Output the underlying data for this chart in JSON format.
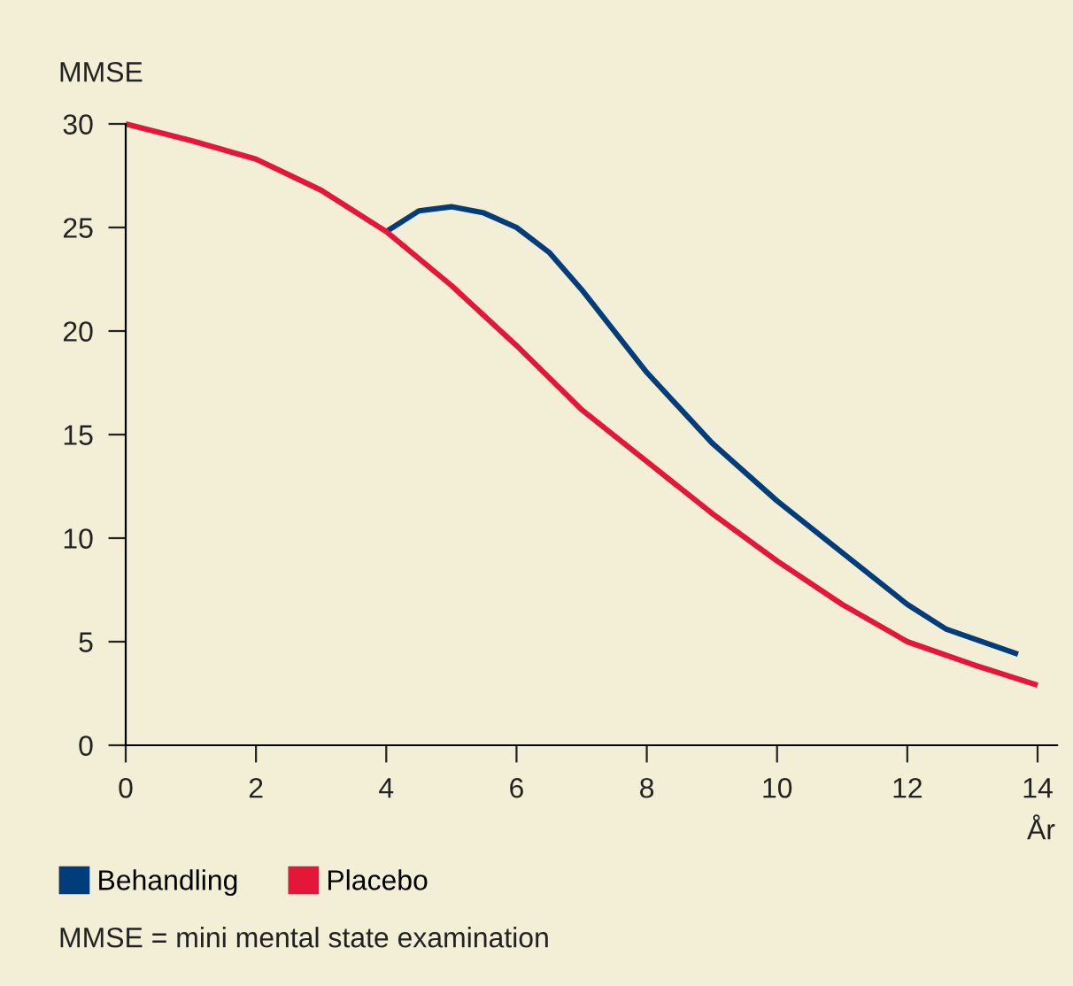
{
  "chart_data": {
    "type": "line",
    "ylabel": "MMSE",
    "xlabel": "År",
    "series": [
      {
        "name": "Behandling",
        "color": "#003d7a",
        "x": [
          4,
          4.5,
          5,
          5.5,
          6,
          6.5,
          7,
          8,
          9,
          10,
          11,
          12,
          12.6,
          13.7
        ],
        "values": [
          24.8,
          25.8,
          26.0,
          25.7,
          25.0,
          23.8,
          22.0,
          18.0,
          14.6,
          11.8,
          9.3,
          6.8,
          5.6,
          4.4
        ]
      },
      {
        "name": "Placebo",
        "color": "#e4163a",
        "x": [
          0,
          1,
          2,
          3,
          4,
          5,
          6,
          7,
          8,
          9,
          10,
          11,
          12,
          13,
          14
        ],
        "values": [
          30,
          29.2,
          28.3,
          26.8,
          24.8,
          22.2,
          19.3,
          16.2,
          13.7,
          11.2,
          8.9,
          6.8,
          5.0,
          3.9,
          2.9
        ]
      }
    ],
    "xlim": [
      0,
      14.3
    ],
    "xticks": [
      0,
      2,
      4,
      6,
      8,
      10,
      12,
      14
    ],
    "ylim": [
      0,
      30
    ],
    "yticks": [
      0,
      5,
      10,
      15,
      20,
      25,
      30
    ],
    "grid": false,
    "legend": "bottom left",
    "marker": "none",
    "line_style": "solid",
    "annotations": [
      "MMSE = mini mental state examination"
    ]
  }
}
